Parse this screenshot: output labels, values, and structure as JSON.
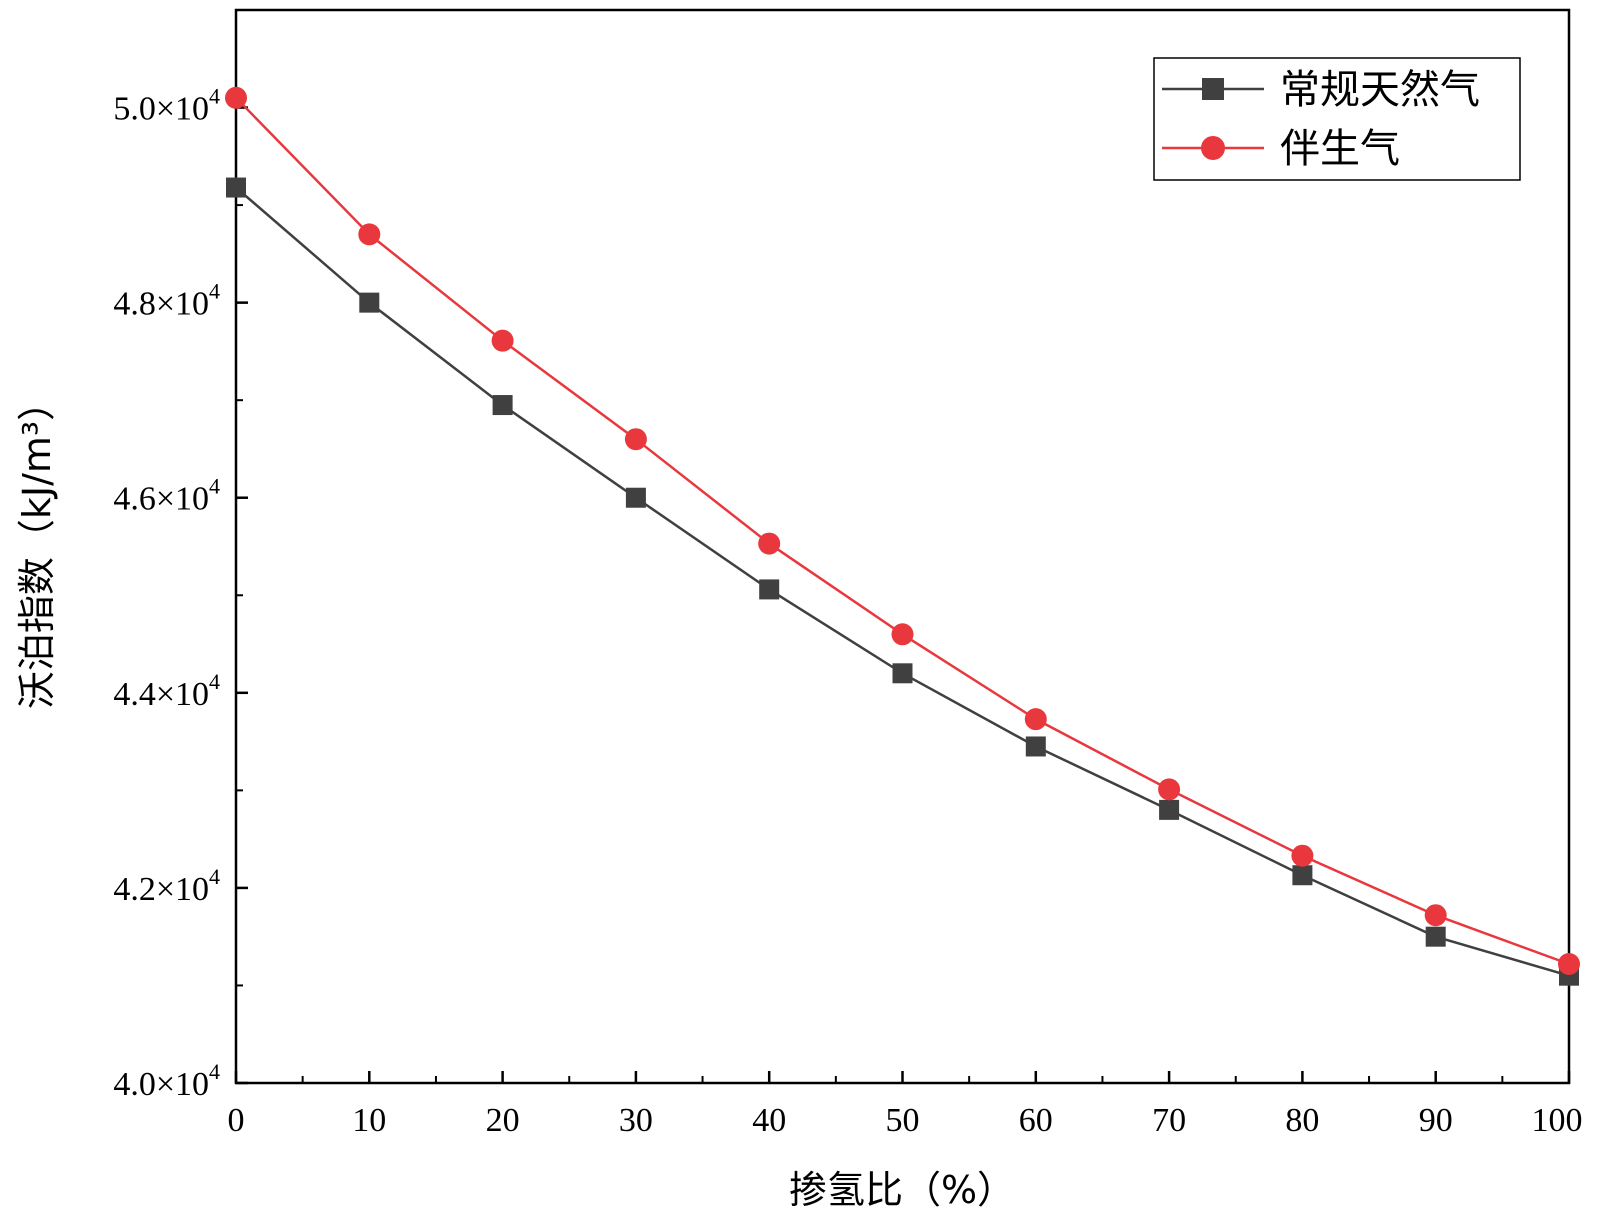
{
  "chart_data": {
    "type": "line",
    "xlabel": "掺氢比（%）",
    "ylabel": "沃泊指数（kJ/m³）",
    "xlim": [
      0,
      100
    ],
    "ylim": [
      40000,
      51000
    ],
    "x_ticks": [
      0,
      10,
      20,
      30,
      40,
      50,
      60,
      70,
      80,
      90,
      100
    ],
    "y_major_ticks": [
      40000,
      42000,
      44000,
      46000,
      48000,
      50000
    ],
    "y_tick_labels": [
      {
        "mantissa": "4.0",
        "base": "×10",
        "exp": "4"
      },
      {
        "mantissa": "4.2",
        "base": "×10",
        "exp": "4"
      },
      {
        "mantissa": "4.4",
        "base": "×10",
        "exp": "4"
      },
      {
        "mantissa": "4.6",
        "base": "×10",
        "exp": "4"
      },
      {
        "mantissa": "4.8",
        "base": "×10",
        "exp": "4"
      },
      {
        "mantissa": "5.0",
        "base": "×10",
        "exp": "4"
      }
    ],
    "x": [
      0,
      10,
      20,
      30,
      40,
      50,
      60,
      70,
      80,
      90,
      100
    ],
    "series": [
      {
        "name": "常规天然气",
        "color": "#404040",
        "marker": "square",
        "values": [
          49180,
          48000,
          46950,
          46000,
          45060,
          44200,
          43450,
          42800,
          42130,
          41500,
          41100
        ]
      },
      {
        "name": "伴生气",
        "color": "#e8383d",
        "marker": "circle",
        "values": [
          50100,
          48700,
          47610,
          46600,
          45530,
          44600,
          43730,
          43010,
          42330,
          41720,
          41220
        ]
      }
    ],
    "legend_position": "top-right",
    "grid": false
  }
}
